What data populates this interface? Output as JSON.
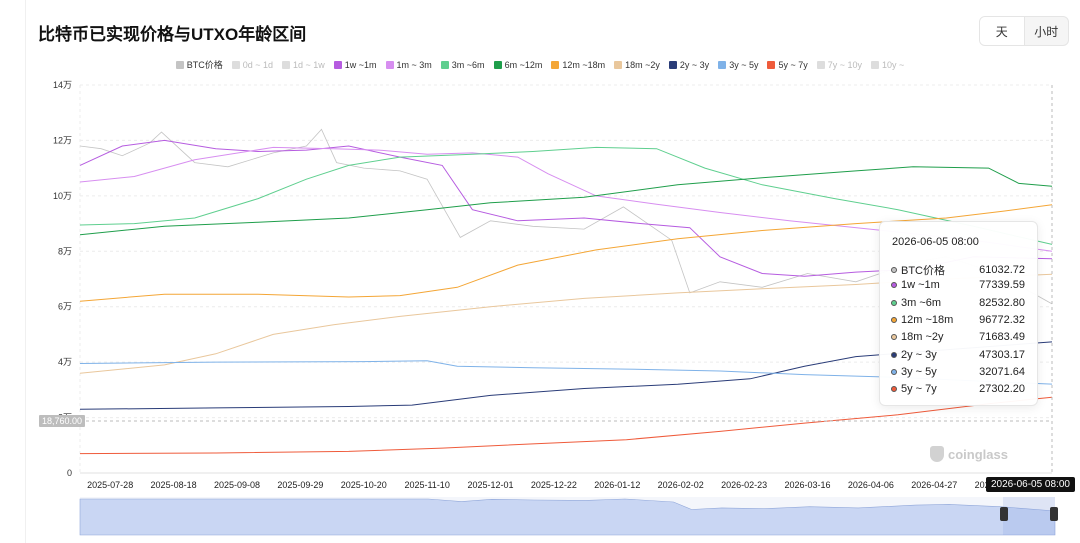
{
  "header": {
    "title": "比特币已实现价格与UTXO年龄区间"
  },
  "toggle": {
    "day_label": "天",
    "hour_label": "小时",
    "active": "天"
  },
  "legend": [
    {
      "name": "BTC价格",
      "color": "#c4c4c4",
      "active": true
    },
    {
      "name": "0d ~ 1d",
      "color": "#dddddd",
      "active": false
    },
    {
      "name": "1d ~ 1w",
      "color": "#dddddd",
      "active": false
    },
    {
      "name": "1w ~1m",
      "color": "#b65ce0",
      "active": true
    },
    {
      "name": "1m ~ 3m",
      "color": "#d78ef0",
      "active": true
    },
    {
      "name": "3m ~6m",
      "color": "#5fcf8f",
      "active": true
    },
    {
      "name": "6m ~12m",
      "color": "#1f9e4b",
      "active": true
    },
    {
      "name": "12m ~18m",
      "color": "#f4a636",
      "active": true
    },
    {
      "name": "18m ~2y",
      "color": "#e9c79c",
      "active": true
    },
    {
      "name": "2y ~ 3y",
      "color": "#2a3c78",
      "active": true
    },
    {
      "name": "3y ~ 5y",
      "color": "#7fb2e8",
      "active": true
    },
    {
      "name": "5y ~ 7y",
      "color": "#ef5b3b",
      "active": true
    },
    {
      "name": "7y ~ 10y",
      "color": "#dddddd",
      "active": false
    },
    {
      "name": "10y ~",
      "color": "#dddddd",
      "active": false
    }
  ],
  "tooltip": {
    "title": "2026-06-05 08:00",
    "rows": [
      {
        "name": "BTC价格",
        "value": "61032.72",
        "color": "#c4c4c4"
      },
      {
        "name": "1w ~1m",
        "value": "77339.59",
        "color": "#b65ce0"
      },
      {
        "name": "3m ~6m",
        "value": "82532.80",
        "color": "#5fcf8f"
      },
      {
        "name": "12m ~18m",
        "value": "96772.32",
        "color": "#f4a636"
      },
      {
        "name": "18m ~2y",
        "value": "71683.49",
        "color": "#e9c79c"
      },
      {
        "name": "2y ~ 3y",
        "value": "47303.17",
        "color": "#2a3c78"
      },
      {
        "name": "3y ~ 5y",
        "value": "32071.64",
        "color": "#7fb2e8"
      },
      {
        "name": "5y ~ 7y",
        "value": "27302.20",
        "color": "#ef5b3b"
      }
    ]
  },
  "crosshair": {
    "x_label": "2026-06-05 08:00",
    "y_label": "18,760.00"
  },
  "watermark": "coinglass",
  "chart_data": {
    "type": "line",
    "x_ticks": [
      "2025-07-28",
      "2025-08-18",
      "2025-09-08",
      "2025-09-29",
      "2025-10-20",
      "2025-11-10",
      "2025-12-01",
      "2025-12-22",
      "2026-01-12",
      "2026-02-02",
      "2026-02-23",
      "2026-03-16",
      "2026-04-06",
      "2026-04-27",
      "2026-05-18"
    ],
    "y_ticks": [
      {
        "value": 0,
        "label": "0"
      },
      {
        "value": 20000,
        "label": "2万"
      },
      {
        "value": 40000,
        "label": "4万"
      },
      {
        "value": 60000,
        "label": "6万"
      },
      {
        "value": 80000,
        "label": "8万"
      },
      {
        "value": 100000,
        "label": "10万"
      },
      {
        "value": 120000,
        "label": "12万"
      },
      {
        "value": 140000,
        "label": "14万"
      }
    ],
    "ylim": [
      0,
      140000
    ],
    "x_range": [
      "2025-07-18",
      "2026-06-05"
    ],
    "series": [
      {
        "name": "BTC价格",
        "color": "#c4c4c4",
        "width": 0.8,
        "dates": [
          "2025-07-18",
          "2025-07-25",
          "2025-08-01",
          "2025-08-10",
          "2025-08-14",
          "2025-08-25",
          "2025-09-05",
          "2025-09-20",
          "2025-10-01",
          "2025-10-06",
          "2025-10-11",
          "2025-10-20",
          "2025-11-01",
          "2025-11-10",
          "2025-11-21",
          "2025-12-01",
          "2025-12-15",
          "2026-01-01",
          "2026-01-14",
          "2026-01-30",
          "2026-02-05",
          "2026-02-15",
          "2026-03-01",
          "2026-03-16",
          "2026-04-01",
          "2026-04-20",
          "2026-05-01",
          "2026-05-18",
          "2026-06-05"
        ],
        "values": [
          118000,
          117000,
          114500,
          119000,
          123000,
          112000,
          110500,
          115500,
          118000,
          124000,
          112000,
          110000,
          109000,
          106000,
          85000,
          91000,
          89000,
          88000,
          96000,
          84000,
          65000,
          69000,
          67000,
          72000,
          69000,
          76000,
          78000,
          72000,
          61000
        ]
      },
      {
        "name": "1w ~1m",
        "color": "#b65ce0",
        "width": 1,
        "dates": [
          "2025-07-18",
          "2025-08-01",
          "2025-08-15",
          "2025-09-01",
          "2025-09-15",
          "2025-10-01",
          "2025-10-15",
          "2025-11-01",
          "2025-11-15",
          "2025-11-25",
          "2025-12-10",
          "2026-01-01",
          "2026-01-20",
          "2026-02-05",
          "2026-02-15",
          "2026-03-01",
          "2026-03-15",
          "2026-04-01",
          "2026-04-20",
          "2026-05-10",
          "2026-06-05"
        ],
        "values": [
          111000,
          118000,
          120000,
          117000,
          116000,
          116500,
          118000,
          114000,
          111000,
          95000,
          91000,
          92000,
          90000,
          88500,
          78000,
          72000,
          71000,
          72500,
          73500,
          78000,
          77340
        ]
      },
      {
        "name": "1m ~ 3m",
        "color": "#d78ef0",
        "width": 1,
        "dates": [
          "2025-07-18",
          "2025-08-05",
          "2025-08-25",
          "2025-09-20",
          "2025-10-10",
          "2025-10-25",
          "2025-11-10",
          "2025-11-25",
          "2025-12-10",
          "2025-12-20",
          "2026-01-05",
          "2026-01-25",
          "2026-02-15",
          "2026-03-10",
          "2026-04-10",
          "2026-05-10",
          "2026-06-05"
        ],
        "values": [
          105000,
          107000,
          113000,
          117500,
          117000,
          116500,
          115000,
          115500,
          114000,
          108000,
          100000,
          97000,
          94000,
          91000,
          87500,
          84000,
          80000
        ]
      },
      {
        "name": "3m ~6m",
        "color": "#5fcf8f",
        "width": 1,
        "dates": [
          "2025-07-18",
          "2025-08-05",
          "2025-08-25",
          "2025-09-15",
          "2025-10-01",
          "2025-10-15",
          "2025-11-01",
          "2025-11-25",
          "2025-12-15",
          "2026-01-05",
          "2026-01-25",
          "2026-02-10",
          "2026-03-01",
          "2026-03-25",
          "2026-04-15",
          "2026-05-10",
          "2026-06-05"
        ],
        "values": [
          89500,
          90000,
          92000,
          99000,
          106000,
          111000,
          114000,
          115000,
          116000,
          117500,
          117000,
          110000,
          104000,
          99000,
          95000,
          89000,
          82500
        ]
      },
      {
        "name": "6m ~12m",
        "color": "#1f9e4b",
        "width": 1,
        "dates": [
          "2025-07-18",
          "2025-08-15",
          "2025-09-15",
          "2025-10-15",
          "2025-11-10",
          "2025-12-01",
          "2026-01-01",
          "2026-02-01",
          "2026-03-01",
          "2026-04-01",
          "2026-04-20",
          "2026-05-15",
          "2026-05-25",
          "2026-06-05"
        ],
        "values": [
          86000,
          89000,
          90500,
          92000,
          95000,
          97500,
          99500,
          104000,
          106500,
          109000,
          110500,
          110000,
          104500,
          103500
        ]
      },
      {
        "name": "12m ~18m",
        "color": "#f4a636",
        "width": 1,
        "dates": [
          "2025-07-18",
          "2025-08-15",
          "2025-09-15",
          "2025-10-15",
          "2025-11-01",
          "2025-11-20",
          "2025-12-10",
          "2026-01-05",
          "2026-02-01",
          "2026-03-01",
          "2026-04-01",
          "2026-05-01",
          "2026-05-20",
          "2026-06-05"
        ],
        "values": [
          62000,
          64500,
          64500,
          63500,
          64000,
          67000,
          75000,
          80500,
          84500,
          87500,
          90000,
          92000,
          94500,
          96772
        ]
      },
      {
        "name": "18m ~2y",
        "color": "#e9c79c",
        "width": 1,
        "dates": [
          "2025-07-18",
          "2025-08-15",
          "2025-09-01",
          "2025-09-20",
          "2025-10-10",
          "2025-11-01",
          "2025-12-01",
          "2026-01-01",
          "2026-02-01",
          "2026-03-01",
          "2026-04-01",
          "2026-05-01",
          "2026-06-05"
        ],
        "values": [
          36000,
          39000,
          43000,
          50000,
          53500,
          56500,
          60000,
          63000,
          65000,
          66500,
          68000,
          70000,
          71683
        ]
      },
      {
        "name": "2y ~ 3y",
        "color": "#2a3c78",
        "width": 1,
        "dates": [
          "2025-07-18",
          "2025-09-01",
          "2025-10-15",
          "2025-11-05",
          "2025-12-01",
          "2026-01-01",
          "2026-02-01",
          "2026-02-25",
          "2026-03-15",
          "2026-04-01",
          "2026-05-01",
          "2026-06-05"
        ],
        "values": [
          23000,
          23500,
          24000,
          24500,
          28000,
          30500,
          32000,
          34000,
          38500,
          42000,
          44500,
          47303
        ]
      },
      {
        "name": "3y ~ 5y",
        "color": "#7fb2e8",
        "width": 1,
        "dates": [
          "2025-07-18",
          "2025-09-01",
          "2025-10-20",
          "2025-11-10",
          "2025-11-20",
          "2025-12-15",
          "2026-01-15",
          "2026-02-15",
          "2026-03-15",
          "2026-04-15",
          "2026-05-15",
          "2026-06-05"
        ],
        "values": [
          39500,
          40000,
          40200,
          40500,
          38500,
          38000,
          37500,
          36800,
          35500,
          34500,
          33000,
          32072
        ]
      },
      {
        "name": "5y ~ 7y",
        "color": "#ef5b3b",
        "width": 1,
        "dates": [
          "2025-07-18",
          "2025-09-01",
          "2025-10-15",
          "2025-11-15",
          "2025-12-15",
          "2026-01-15",
          "2026-02-15",
          "2026-03-15",
          "2026-04-15",
          "2026-05-15",
          "2026-06-05"
        ],
        "values": [
          7000,
          7200,
          7800,
          9000,
          10500,
          12000,
          15000,
          18000,
          21000,
          25000,
          27302
        ]
      }
    ]
  }
}
